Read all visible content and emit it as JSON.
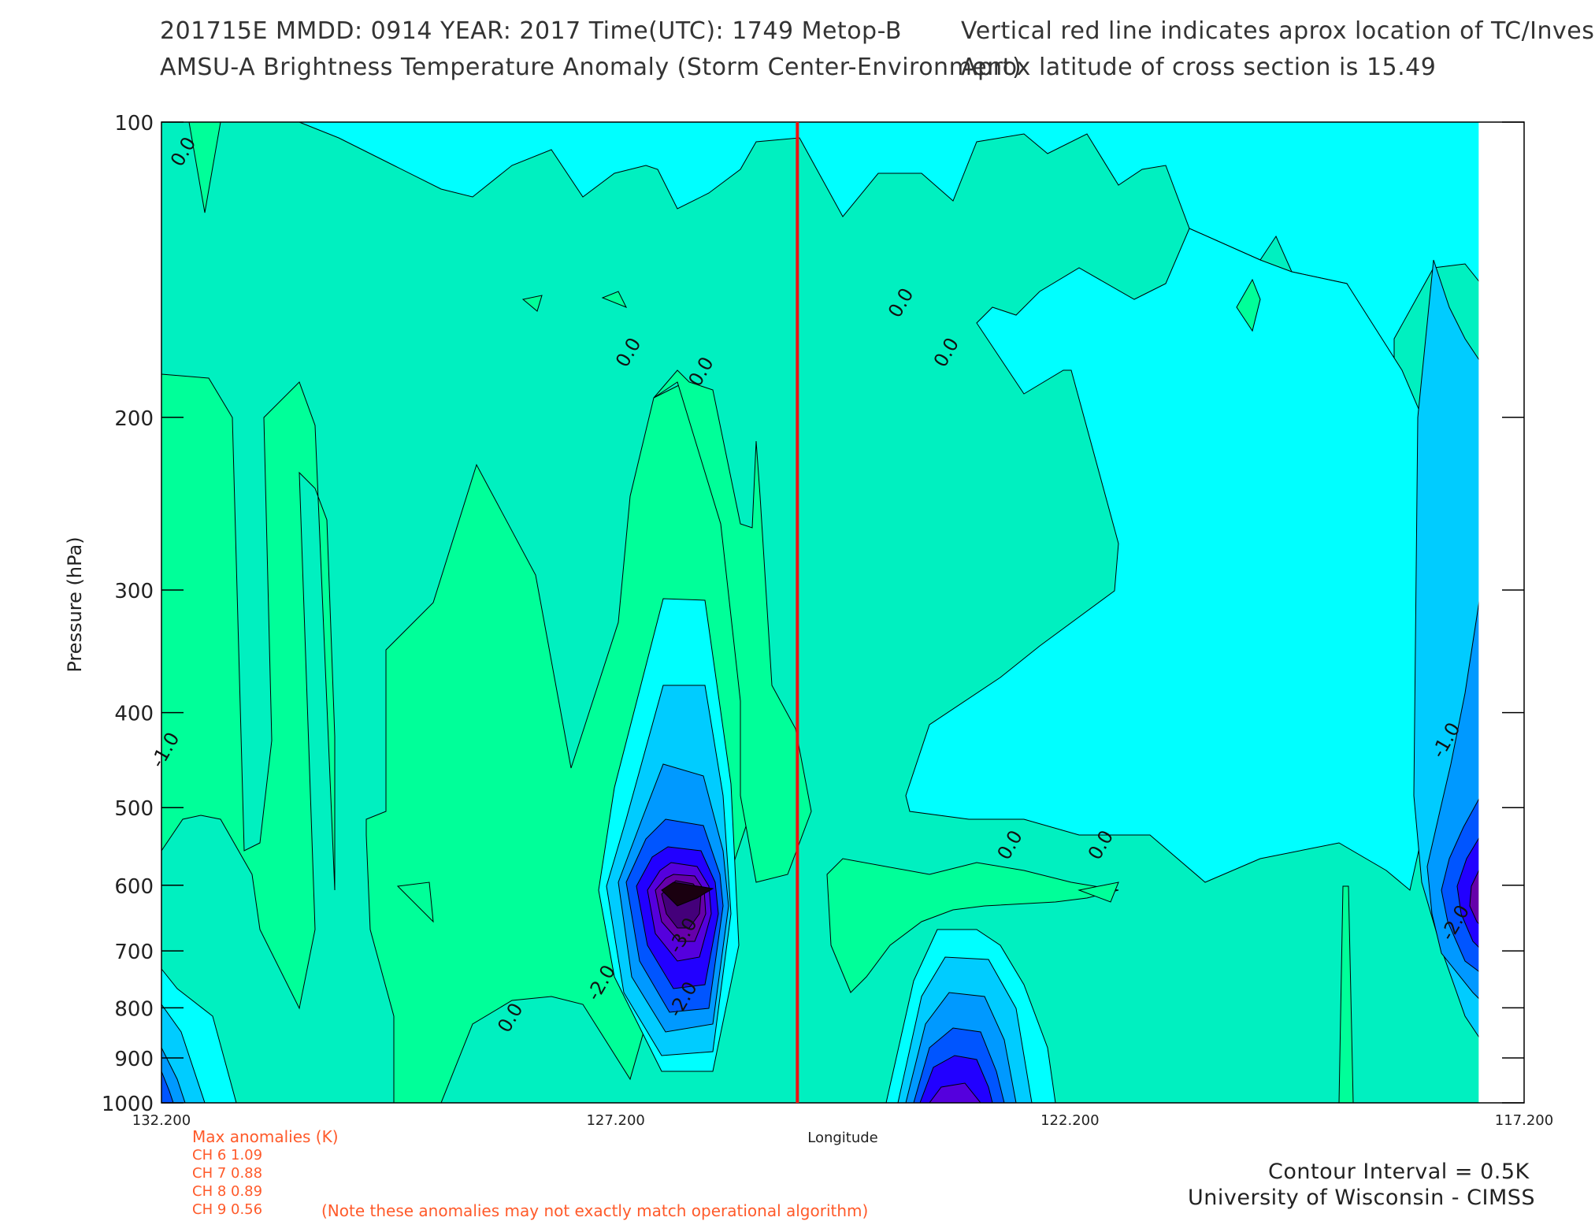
{
  "header": {
    "line1_left": "201715E  MMDD: 0914 YEAR: 2017 Time(UTC): 1749 Metop-B",
    "line1_right": "Vertical red line indicates aprox location of TC/Invest",
    "line2_left": "AMSU-A Brightness Temperature Anomaly (Storm Center-Environment)",
    "line2_right": "Aprox latitude of cross section is 15.49"
  },
  "chart_data": {
    "type": "heatmap",
    "subtype": "filled contour cross-section",
    "title": "AMSU-A Brightness Temperature Anomaly (Storm Center-Environment)",
    "xlabel": "Longitude",
    "ylabel": "Pressure (hPa)",
    "x_ticks": [
      "132.200",
      "127.200",
      "122.200",
      "117.200"
    ],
    "x_tick_values": [
      132.2,
      127.2,
      122.2,
      117.2
    ],
    "xlim": [
      132.2,
      117.2
    ],
    "y_ticks": [
      "100",
      "200",
      "300",
      "400",
      "500",
      "600",
      "700",
      "800",
      "900",
      "1000"
    ],
    "y_tick_values": [
      100,
      200,
      300,
      400,
      500,
      600,
      700,
      800,
      900,
      1000
    ],
    "ylim": [
      1000,
      100
    ],
    "y_scale": "log (inverted)",
    "tc_longitude": 125.2,
    "x_data_max": 117.7,
    "contour_interval_K": 0.5,
    "contour_labels": [
      {
        "text": "0.0",
        "lon": 131.9,
        "p": 108
      },
      {
        "text": "0.0",
        "lon": 126.2,
        "p": 181
      },
      {
        "text": "0.0",
        "lon": 127.0,
        "p": 173
      },
      {
        "text": "0.0",
        "lon": 124.0,
        "p": 154
      },
      {
        "text": "0.0",
        "lon": 123.5,
        "p": 173
      },
      {
        "text": "0.0",
        "lon": 128.3,
        "p": 825
      },
      {
        "text": "0.0",
        "lon": 122.8,
        "p": 550
      },
      {
        "text": "0.0",
        "lon": 121.8,
        "p": 550
      },
      {
        "text": "-1.0",
        "lon": 132.1,
        "p": 440
      },
      {
        "text": "-1.0",
        "lon": 118.0,
        "p": 430
      },
      {
        "text": "-2.0",
        "lon": 127.3,
        "p": 760
      },
      {
        "text": "-2.0",
        "lon": 117.9,
        "p": 660
      },
      {
        "text": "-3.0",
        "lon": 126.4,
        "p": 680
      },
      {
        "text": "-2.0",
        "lon": 126.4,
        "p": 790
      }
    ],
    "colors": {
      "warm": "#00ff99",
      "near_zero": "#00f0c0",
      "cool": "#00ffff",
      "cold_1": "#00ccff",
      "cold_2": "#0099ff",
      "cold_3": "#0055ff",
      "cold_4": "#2200ff",
      "cold_5": "#6600cc",
      "cold_6": "#44007a",
      "core": "#1a0010",
      "tc_line": "#ee1111"
    }
  },
  "max_anomalies": {
    "title": "Max anomalies (K)",
    "rows": [
      "CH 6  1.09",
      "CH 7  0.88",
      "CH 8  0.89",
      "CH 9  0.56"
    ],
    "note": "(Note these anomalies may not exactly match operational algorithm)"
  },
  "footer": {
    "contour_interval": "Contour Interval = 0.5K",
    "institution": "University of Wisconsin - CIMSS"
  }
}
